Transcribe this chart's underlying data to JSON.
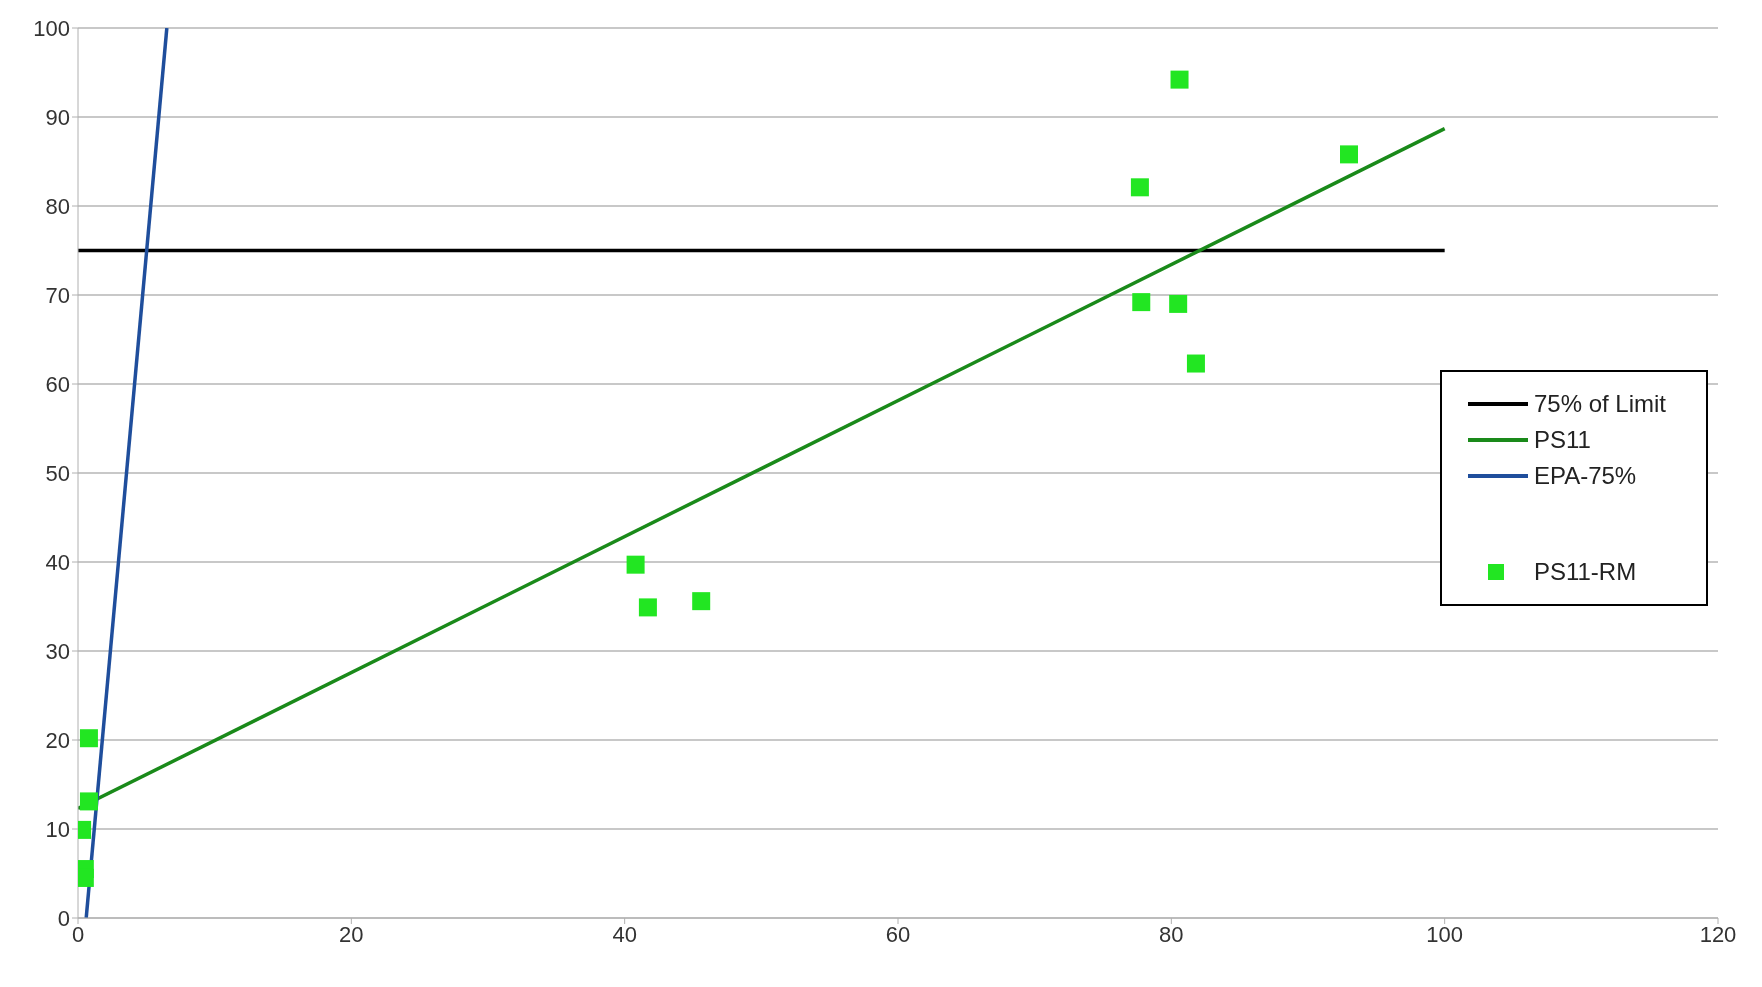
{
  "chart_data": {
    "type": "scatter",
    "xlim": [
      0,
      120
    ],
    "xticks": [
      0,
      20,
      40,
      60,
      80,
      100,
      120
    ],
    "ylim": [
      0,
      100
    ],
    "yticks": [
      0,
      10,
      20,
      30,
      40,
      50,
      60,
      70,
      80,
      90,
      100
    ],
    "grid": "y",
    "legend": "right",
    "series": [
      {
        "name": "75% of Limit",
        "type": "line",
        "color": "#000000",
        "x": [
          0,
          100
        ],
        "values": [
          75,
          75
        ],
        "marker": "none",
        "line_style": "solid"
      },
      {
        "name": "PS11",
        "type": "line",
        "color": "#1a8a1a",
        "x": [
          0,
          100
        ],
        "values": [
          12.3,
          88.7
        ],
        "marker": "none",
        "line_style": "solid"
      },
      {
        "name": "EPA-75%",
        "type": "line",
        "color": "#1f4e9c",
        "x": [
          0.6,
          6.5
        ],
        "values": [
          0,
          100
        ],
        "marker": "none",
        "line_style": "solid"
      },
      {
        "name": "PS11-RM",
        "color": "#22e622",
        "marker": "square",
        "x": [
          80.6,
          93,
          77.7,
          77.8,
          80.5,
          81.8,
          40.8,
          41.7,
          45.6,
          0.8,
          0.8,
          0.3,
          0.5,
          0.5
        ],
        "values": [
          94.2,
          85.8,
          82.1,
          69.2,
          69,
          62.3,
          39.7,
          34.9,
          35.6,
          20.2,
          13.1,
          9.9,
          5.5,
          4.5
        ]
      }
    ]
  }
}
